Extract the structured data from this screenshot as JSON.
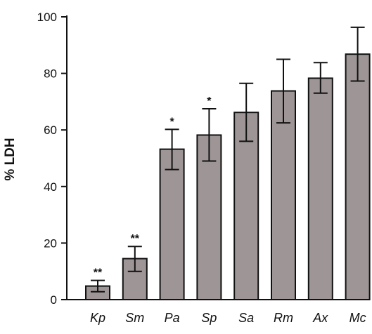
{
  "chart_data": {
    "type": "bar",
    "title": "",
    "xlabel": "",
    "ylabel": "% LDH",
    "ylim": [
      0,
      100
    ],
    "yticks": [
      0,
      20,
      40,
      60,
      80,
      100
    ],
    "grid": false,
    "categories": [
      "Kp",
      "Sm",
      "Pa",
      "Sp",
      "Sa",
      "Rm",
      "Ax",
      "Mc"
    ],
    "values": [
      4.8,
      14.5,
      53.2,
      58.2,
      66.2,
      73.8,
      78.3,
      86.8
    ],
    "error_upper": [
      6.8,
      18.8,
      60.2,
      67.5,
      76.5,
      85.0,
      83.8,
      96.3
    ],
    "error_lower": [
      2.8,
      10.0,
      46.0,
      49.0,
      56.0,
      62.5,
      73.0,
      77.3
    ],
    "significance": [
      "**",
      "**",
      "*",
      "*",
      "",
      "",
      "",
      ""
    ],
    "bar_color": "#9e9696",
    "bar_edge_color": "#111111"
  }
}
